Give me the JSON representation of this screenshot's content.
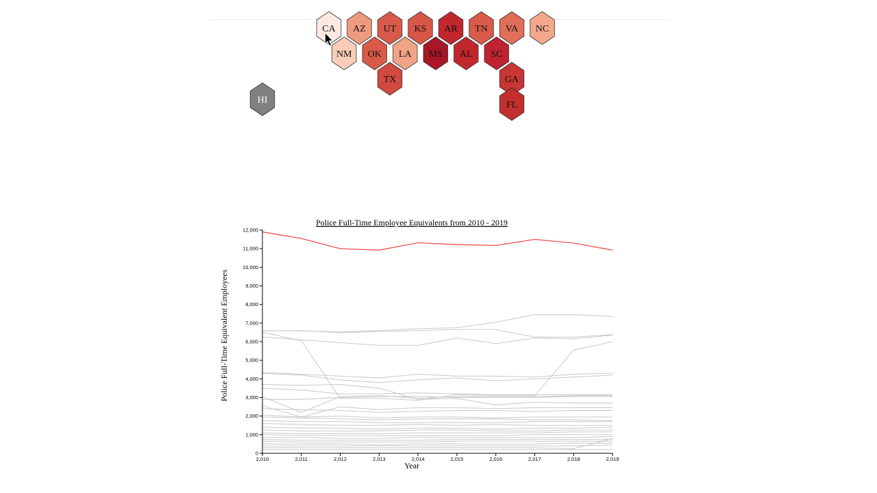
{
  "hexmap": {
    "states": [
      {
        "abbr": "CA",
        "row": 0,
        "col": 0,
        "color": "#fbe9e2",
        "dark_text": true
      },
      {
        "abbr": "AZ",
        "row": 0,
        "col": 1,
        "color": "#ee9a7f",
        "dark_text": true
      },
      {
        "abbr": "UT",
        "row": 0,
        "col": 2,
        "color": "#d95a49",
        "dark_text": true
      },
      {
        "abbr": "KS",
        "row": 0,
        "col": 3,
        "color": "#d75648",
        "dark_text": true
      },
      {
        "abbr": "AR",
        "row": 0,
        "col": 4,
        "color": "#c3272e",
        "dark_text": true
      },
      {
        "abbr": "TN",
        "row": 0,
        "col": 5,
        "color": "#d95a49",
        "dark_text": true
      },
      {
        "abbr": "VA",
        "row": 0,
        "col": 6,
        "color": "#e06f57",
        "dark_text": true
      },
      {
        "abbr": "NC",
        "row": 0,
        "col": 7,
        "color": "#f3a88c",
        "dark_text": true
      },
      {
        "abbr": "NM",
        "row": 1,
        "col": 1,
        "color": "#fbcdb8",
        "dark_text": true
      },
      {
        "abbr": "OK",
        "row": 1,
        "col": 2,
        "color": "#d95a49",
        "dark_text": true
      },
      {
        "abbr": "LA",
        "row": 1,
        "col": 3,
        "color": "#f1a387",
        "dark_text": true
      },
      {
        "abbr": "MS",
        "row": 1,
        "col": 4,
        "color": "#a81628",
        "dark_text": true
      },
      {
        "abbr": "AL",
        "row": 1,
        "col": 5,
        "color": "#c3272e",
        "dark_text": true
      },
      {
        "abbr": "SC",
        "row": 1,
        "col": 6,
        "color": "#bf2230",
        "dark_text": true
      },
      {
        "abbr": "TX",
        "row": 2,
        "col": 2,
        "color": "#d24940",
        "dark_text": true
      },
      {
        "abbr": "GA",
        "row": 2,
        "col": 6,
        "color": "#c73632",
        "dark_text": true
      },
      {
        "abbr": "FL",
        "row": 3,
        "col": 6,
        "color": "#c32e2f",
        "dark_text": true
      },
      {
        "abbr": "HI",
        "row": null,
        "col": null,
        "color": "#808080",
        "dark_text": false
      }
    ]
  },
  "chart_data": {
    "type": "line",
    "title": "Police Full-Time Employee Equivalents from 2010 - 2019",
    "xlabel": "Year",
    "ylabel": "Police Full-Time Equivalent Employees",
    "x": [
      2010,
      2011,
      2012,
      2013,
      2014,
      2015,
      2016,
      2017,
      2018,
      2019
    ],
    "x_tick_labels": [
      "2,010",
      "2,011",
      "2,012",
      "2,013",
      "2,014",
      "2,015",
      "2,016",
      "2,017",
      "2,018",
      "2,019"
    ],
    "y_tick_labels": [
      "0",
      "1,000",
      "2,000",
      "3,000",
      "4,000",
      "5,000",
      "6,000",
      "7,000",
      "8,000",
      "9,000",
      "10,000",
      "11,000",
      "12,000"
    ],
    "xlim": [
      2010,
      2019
    ],
    "ylim": [
      0,
      12000
    ],
    "grid": false,
    "highlight_color": "#f05050",
    "base_color": "#c8c8c8",
    "series": [
      {
        "highlight": true,
        "values": [
          11900,
          11550,
          11000,
          10920,
          11320,
          11220,
          11170,
          11500,
          11300,
          10920
        ]
      },
      {
        "values": [
          6600,
          6580,
          6520,
          6600,
          6700,
          6750,
          7050,
          7450,
          7450,
          7350
        ]
      },
      {
        "values": [
          6580,
          6600,
          6480,
          6550,
          6600,
          6650,
          6650,
          6250,
          6250,
          6380
        ]
      },
      {
        "values": [
          6500,
          6050,
          2950,
          2950,
          2850,
          3150,
          3100,
          3100,
          5550,
          6000
        ]
      },
      {
        "values": [
          6250,
          6100,
          5950,
          5800,
          5800,
          6200,
          5900,
          6200,
          6150,
          6350
        ]
      },
      {
        "values": [
          4350,
          4250,
          4150,
          4050,
          4250,
          4150,
          4150,
          4100,
          4250,
          4300
        ]
      },
      {
        "values": [
          4300,
          4200,
          3950,
          3800,
          3950,
          4050,
          3900,
          4000,
          4100,
          4200
        ]
      },
      {
        "values": [
          3700,
          3650,
          3700,
          3500,
          2900,
          2950,
          2600,
          2750,
          2700,
          2700
        ]
      },
      {
        "values": [
          3500,
          3400,
          3200,
          3200,
          3250,
          3200,
          3150,
          3150,
          3150,
          3150
        ]
      },
      {
        "values": [
          3050,
          2200,
          3050,
          3100,
          2950,
          3050,
          3050,
          3050,
          3100,
          3100
        ]
      },
      {
        "values": [
          2900,
          2900,
          3000,
          3050,
          3050,
          3000,
          3000,
          3000,
          3050,
          3050
        ]
      },
      {
        "values": [
          2550,
          1950,
          2500,
          2350,
          2450,
          2450,
          2400,
          2450,
          2450,
          2450
        ]
      },
      {
        "values": [
          2400,
          2350,
          2300,
          2200,
          2250,
          2300,
          2300,
          2250,
          2300,
          2300
        ]
      },
      {
        "values": [
          2050,
          1950,
          2000,
          1900,
          1950,
          1950,
          1900,
          1950,
          1950,
          1950
        ]
      },
      {
        "values": [
          1950,
          1900,
          1850,
          1800,
          1850,
          1850,
          1850,
          1800,
          1800,
          1750
        ]
      },
      {
        "values": [
          1750,
          1700,
          1700,
          1650,
          1650,
          1650,
          1650,
          1700,
          1700,
          1700
        ]
      },
      {
        "values": [
          1600,
          1550,
          1500,
          1500,
          1550,
          1500,
          1550,
          1500,
          1500,
          1500
        ]
      },
      {
        "values": [
          1400,
          1350,
          1350,
          1300,
          1350,
          1350,
          1300,
          1350,
          1350,
          1400
        ]
      },
      {
        "values": [
          1250,
          1200,
          1200,
          1200,
          1250,
          1250,
          1200,
          1200,
          1250,
          1250
        ]
      },
      {
        "values": [
          1100,
          1050,
          1050,
          1050,
          1100,
          1100,
          1100,
          1100,
          1150,
          1150
        ]
      },
      {
        "values": [
          1000,
          950,
          950,
          950,
          950,
          950,
          950,
          1000,
          1000,
          1000
        ]
      },
      {
        "values": [
          850,
          850,
          800,
          800,
          850,
          850,
          850,
          850,
          850,
          900
        ]
      },
      {
        "values": [
          750,
          700,
          700,
          700,
          700,
          750,
          750,
          750,
          750,
          750
        ]
      },
      {
        "values": [
          650,
          600,
          600,
          600,
          600,
          650,
          650,
          650,
          650,
          650
        ]
      },
      {
        "values": [
          500,
          500,
          500,
          450,
          500,
          500,
          500,
          500,
          550,
          550
        ]
      },
      {
        "values": [
          400,
          400,
          400,
          400,
          400,
          400,
          400,
          400,
          400,
          450
        ]
      },
      {
        "values": [
          300,
          300,
          300,
          300,
          300,
          300,
          300,
          300,
          250,
          800
        ]
      },
      {
        "values": [
          200,
          200,
          200,
          200,
          200,
          200,
          200,
          200,
          200,
          200
        ]
      }
    ]
  }
}
